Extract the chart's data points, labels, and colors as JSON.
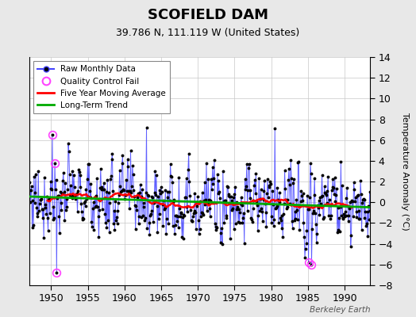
{
  "title": "SCOFIELD DAM",
  "subtitle": "39.786 N, 111.119 W (United States)",
  "ylabel": "Temperature Anomaly (°C)",
  "watermark": "Berkeley Earth",
  "xlim": [
    1947.0,
    1993.5
  ],
  "ylim": [
    -8,
    14
  ],
  "yticks": [
    -8,
    -6,
    -4,
    -2,
    0,
    2,
    4,
    6,
    8,
    10,
    12,
    14
  ],
  "xticks": [
    1950,
    1955,
    1960,
    1965,
    1970,
    1975,
    1980,
    1985,
    1990
  ],
  "bg_color": "#e8e8e8",
  "plot_bg_color": "#ffffff",
  "grid_color": "#c8c8c8",
  "raw_color": "#4444ff",
  "raw_marker_color": "#000000",
  "qc_fail_color": "#ff44ff",
  "moving_avg_color": "#ff0000",
  "trend_color": "#00aa00",
  "seed": 77
}
